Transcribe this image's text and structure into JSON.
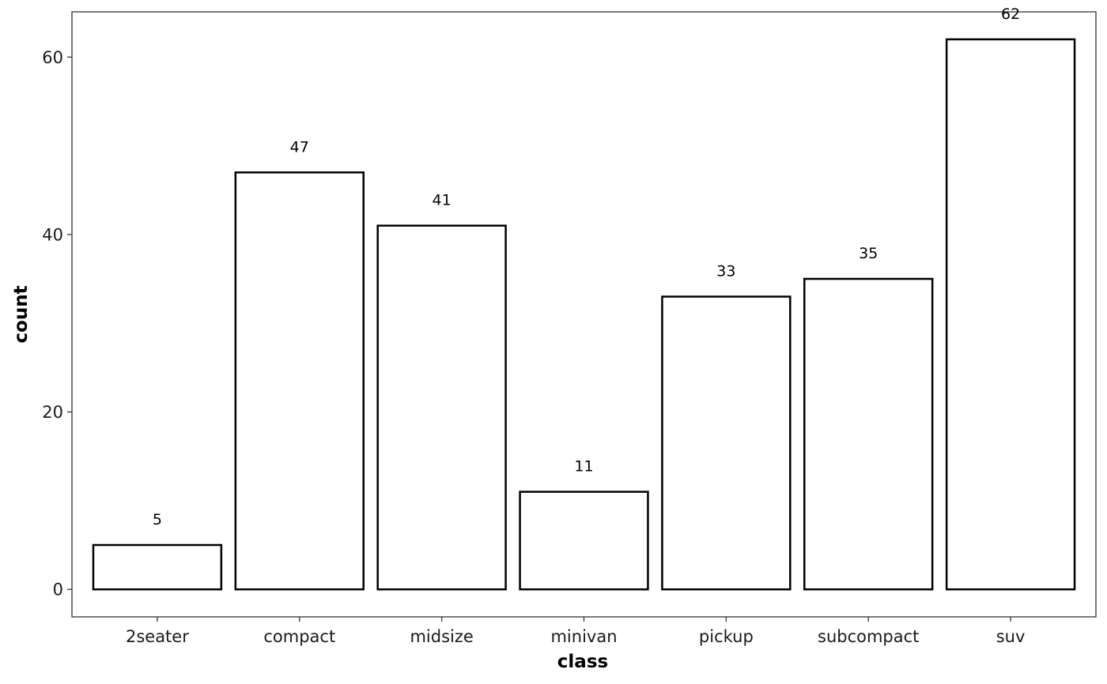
{
  "chart_data": {
    "type": "bar",
    "categories": [
      "2seater",
      "compact",
      "midsize",
      "minivan",
      "pickup",
      "subcompact",
      "suv"
    ],
    "values": [
      5,
      47,
      41,
      11,
      33,
      35,
      62
    ],
    "data_labels": [
      "5",
      "47",
      "41",
      "11",
      "33",
      "35",
      "62"
    ],
    "title": "",
    "xlabel": "class",
    "ylabel": "count",
    "ylim": [
      -3.1,
      65.1
    ],
    "yticks": [
      0,
      20,
      40,
      60
    ],
    "ytick_labels": [
      "0",
      "20",
      "40",
      "60"
    ],
    "grid": false,
    "bar_fill": "#ffffff",
    "bar_outline": "#000000",
    "panel_border": "#333333",
    "background": "#ffffff"
  }
}
